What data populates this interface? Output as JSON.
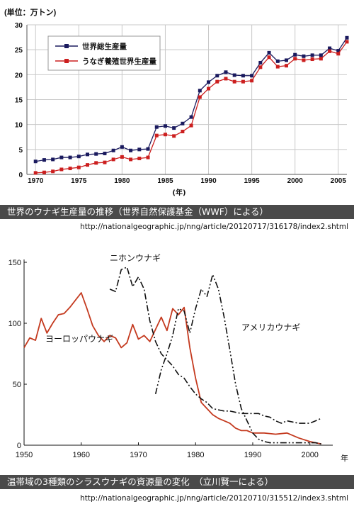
{
  "captions": {
    "top": "世界のウナギ生産量の推移（世界自然保護基金（WWF）による）",
    "top_url": "http://nationalgeographic.jp/nng/article/20120717/316178/index2.shtml",
    "bottom": "温帯域の3種類のシラスウナギの資源量の変化　（立川賢一による）",
    "bottom_url": "http://nationalgeographic.jp/nng/article/20120710/315512/index3.shtml"
  },
  "chart_data": [
    {
      "type": "line",
      "ylabel": "(単位：万トン)",
      "xlabel": "(年)",
      "xlim": [
        1969,
        2006
      ],
      "ylim": [
        0,
        30
      ],
      "yticks": [
        0,
        5,
        10,
        15,
        20,
        25,
        30
      ],
      "xticks": [
        1970,
        1975,
        1980,
        1985,
        1990,
        1995,
        2000,
        2005
      ],
      "grid": true,
      "legend_position": "top-left",
      "colors": {
        "total": "#1a1a5e",
        "farmed": "#cc1f1f"
      },
      "x": [
        1970,
        1971,
        1972,
        1973,
        1974,
        1975,
        1976,
        1977,
        1978,
        1979,
        1980,
        1981,
        1982,
        1983,
        1984,
        1985,
        1986,
        1987,
        1988,
        1989,
        1990,
        1991,
        1992,
        1993,
        1994,
        1995,
        1996,
        1997,
        1998,
        1999,
        2000,
        2001,
        2002,
        2003,
        2004,
        2005,
        2006
      ],
      "series": [
        {
          "name": "世界総生産量",
          "marker": "square",
          "values": [
            2.6,
            2.9,
            3.0,
            3.4,
            3.4,
            3.6,
            4.0,
            4.1,
            4.2,
            4.8,
            5.5,
            4.8,
            5.0,
            5.1,
            9.5,
            9.7,
            9.3,
            10.2,
            11.5,
            16.8,
            18.5,
            19.8,
            20.5,
            19.9,
            19.8,
            19.8,
            22.4,
            24.4,
            22.7,
            22.9,
            24.0,
            23.7,
            23.9,
            23.9,
            25.3,
            24.8,
            27.4
          ]
        },
        {
          "name": "うなぎ養殖世界生産量",
          "marker": "square",
          "values": [
            0.3,
            0.4,
            0.6,
            1.0,
            1.2,
            1.4,
            1.9,
            2.3,
            2.4,
            3.0,
            3.5,
            3.0,
            3.2,
            3.4,
            7.8,
            8.0,
            7.7,
            8.6,
            9.8,
            15.5,
            17.2,
            18.6,
            19.2,
            18.6,
            18.6,
            18.8,
            21.5,
            23.5,
            21.6,
            21.8,
            23.2,
            22.9,
            23.1,
            23.2,
            24.7,
            24.2,
            26.6
          ]
        }
      ]
    },
    {
      "type": "line",
      "xlabel": "年",
      "xlim": [
        1950,
        2004
      ],
      "ylim": [
        0,
        150
      ],
      "yticks": [
        0,
        50,
        100,
        150
      ],
      "xticks": [
        1950,
        1960,
        1970,
        1980,
        1990,
        2000
      ],
      "grid": false,
      "legend_position": "inline labels",
      "series": [
        {
          "name": "ヨーロッパウナギ",
          "color": "#c43a1f",
          "style": "solid",
          "x": [
            1950,
            1951,
            1952,
            1953,
            1954,
            1955,
            1956,
            1957,
            1958,
            1959,
            1960,
            1961,
            1962,
            1963,
            1964,
            1965,
            1966,
            1967,
            1968,
            1969,
            1970,
            1971,
            1972,
            1973,
            1974,
            1975,
            1976,
            1977,
            1978,
            1979,
            1980,
            1981,
            1982,
            1983,
            1984,
            1985,
            1986,
            1987,
            1988,
            1989,
            1990,
            1992,
            1994,
            1996,
            1998,
            2000,
            2002
          ],
          "values": [
            80,
            88,
            86,
            104,
            92,
            100,
            107,
            108,
            113,
            119,
            125,
            112,
            98,
            90,
            85,
            90,
            88,
            80,
            84,
            99,
            87,
            90,
            85,
            95,
            105,
            94,
            112,
            107,
            113,
            80,
            55,
            35,
            30,
            25,
            22,
            20,
            18,
            14,
            12,
            12,
            10,
            10,
            9,
            10,
            6,
            3,
            1
          ]
        },
        {
          "name": "ニホンウナギ",
          "color": "#111111",
          "style": "dashdot",
          "x": [
            1965,
            1966,
            1967,
            1968,
            1969,
            1970,
            1971,
            1972,
            1973,
            1974,
            1975,
            1976,
            1977,
            1978,
            1979,
            1980,
            1981,
            1982,
            1983,
            1984,
            1985,
            1986,
            1987,
            1988,
            1989,
            1990,
            1991,
            1992,
            1993,
            1994,
            1995,
            1996,
            1997,
            1998,
            1999,
            2000,
            2001,
            2002
          ],
          "values": [
            128,
            126,
            144,
            146,
            130,
            138,
            128,
            102,
            85,
            75,
            70,
            65,
            58,
            55,
            48,
            42,
            38,
            35,
            30,
            29,
            28,
            28,
            27,
            26,
            26,
            26,
            26,
            24,
            23,
            20,
            18,
            20,
            19,
            18,
            18,
            18,
            20,
            22
          ]
        },
        {
          "name": "アメリカウナギ",
          "color": "#111111",
          "style": "dashdotdot",
          "x": [
            1973,
            1974,
            1975,
            1976,
            1977,
            1978,
            1979,
            1980,
            1981,
            1982,
            1983,
            1984,
            1985,
            1986,
            1987,
            1988,
            1989,
            1990,
            1991,
            1992,
            1993,
            1994,
            1995,
            1996,
            1997,
            1998,
            1999,
            2000,
            2001,
            2002
          ],
          "values": [
            42,
            62,
            75,
            90,
            112,
            110,
            92,
            112,
            128,
            122,
            140,
            128,
            105,
            78,
            50,
            30,
            20,
            10,
            5,
            3,
            2,
            2,
            2,
            2,
            2,
            2,
            2,
            2,
            2,
            1
          ]
        }
      ]
    }
  ]
}
